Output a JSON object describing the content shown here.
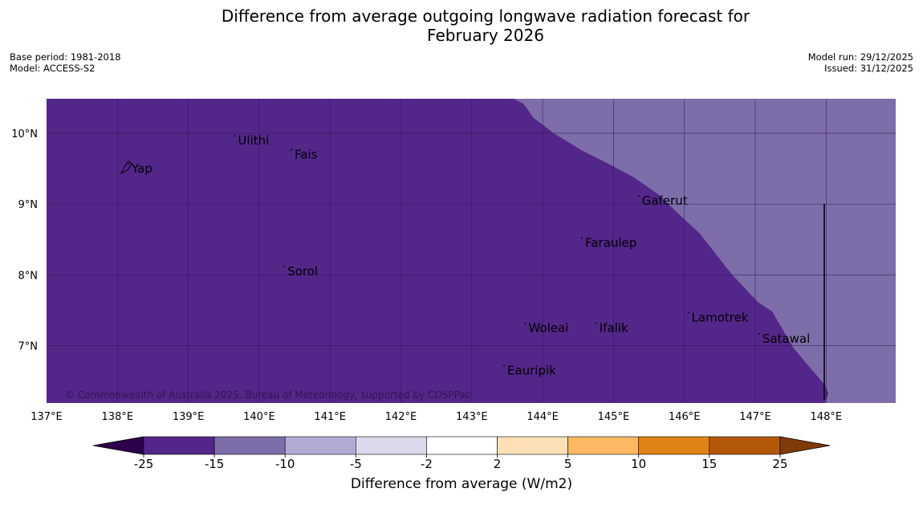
{
  "title_line1": "Difference from average outgoing longwave radiation forecast for",
  "title_line2": "February 2026",
  "base_period": "Base period: 1981-2018",
  "model": "Model: ACCESS-S2",
  "model_run": "Model run: 29/12/2025",
  "issued": "Issued: 31/12/2025",
  "copyright": "© Commonwealth of Australia 2025, Bureau of Meteorology, supported by COSPPac",
  "colors": {
    "field_low": "#53268a",
    "field_mid": "#7d6ea9",
    "grid": "#2d1650"
  },
  "axes": {
    "lon_ticks": [
      "137°E",
      "138°E",
      "139°E",
      "140°E",
      "141°E",
      "142°E",
      "143°E",
      "144°E",
      "145°E",
      "146°E",
      "147°E",
      "148°E"
    ],
    "lat_ticks": [
      "10°N",
      "9°N",
      "8°N",
      "7°N"
    ]
  },
  "places": [
    {
      "name": "Yap",
      "lon": 138.2,
      "lat": 9.5
    },
    {
      "name": "Ulithi",
      "lon": 139.7,
      "lat": 9.9
    },
    {
      "name": "Fais",
      "lon": 140.5,
      "lat": 9.7
    },
    {
      "name": "Gaferut",
      "lon": 145.4,
      "lat": 9.05
    },
    {
      "name": "Faraulep",
      "lon": 144.6,
      "lat": 8.45
    },
    {
      "name": "Sorol",
      "lon": 140.4,
      "lat": 8.05
    },
    {
      "name": "Lamotrek",
      "lon": 146.1,
      "lat": 7.4
    },
    {
      "name": "Satawal",
      "lon": 147.1,
      "lat": 7.1
    },
    {
      "name": "Woleai",
      "lon": 143.8,
      "lat": 7.25
    },
    {
      "name": "Ifalik",
      "lon": 144.8,
      "lat": 7.25
    },
    {
      "name": "Eauripik",
      "lon": 143.5,
      "lat": 6.65
    }
  ],
  "colorbar": {
    "title": "Difference from average (W/m2)",
    "ticks": [
      "-25",
      "-15",
      "-10",
      "-5",
      "-2",
      "2",
      "5",
      "10",
      "15",
      "25"
    ],
    "colors": [
      "#53268a",
      "#7d6ea9",
      "#b3aad4",
      "#d9d9eb",
      "#ffffff",
      "#fee0b6",
      "#fdb863",
      "#e08214",
      "#b35806"
    ],
    "under_color": "#2d004b",
    "over_color": "#7f3b08"
  }
}
